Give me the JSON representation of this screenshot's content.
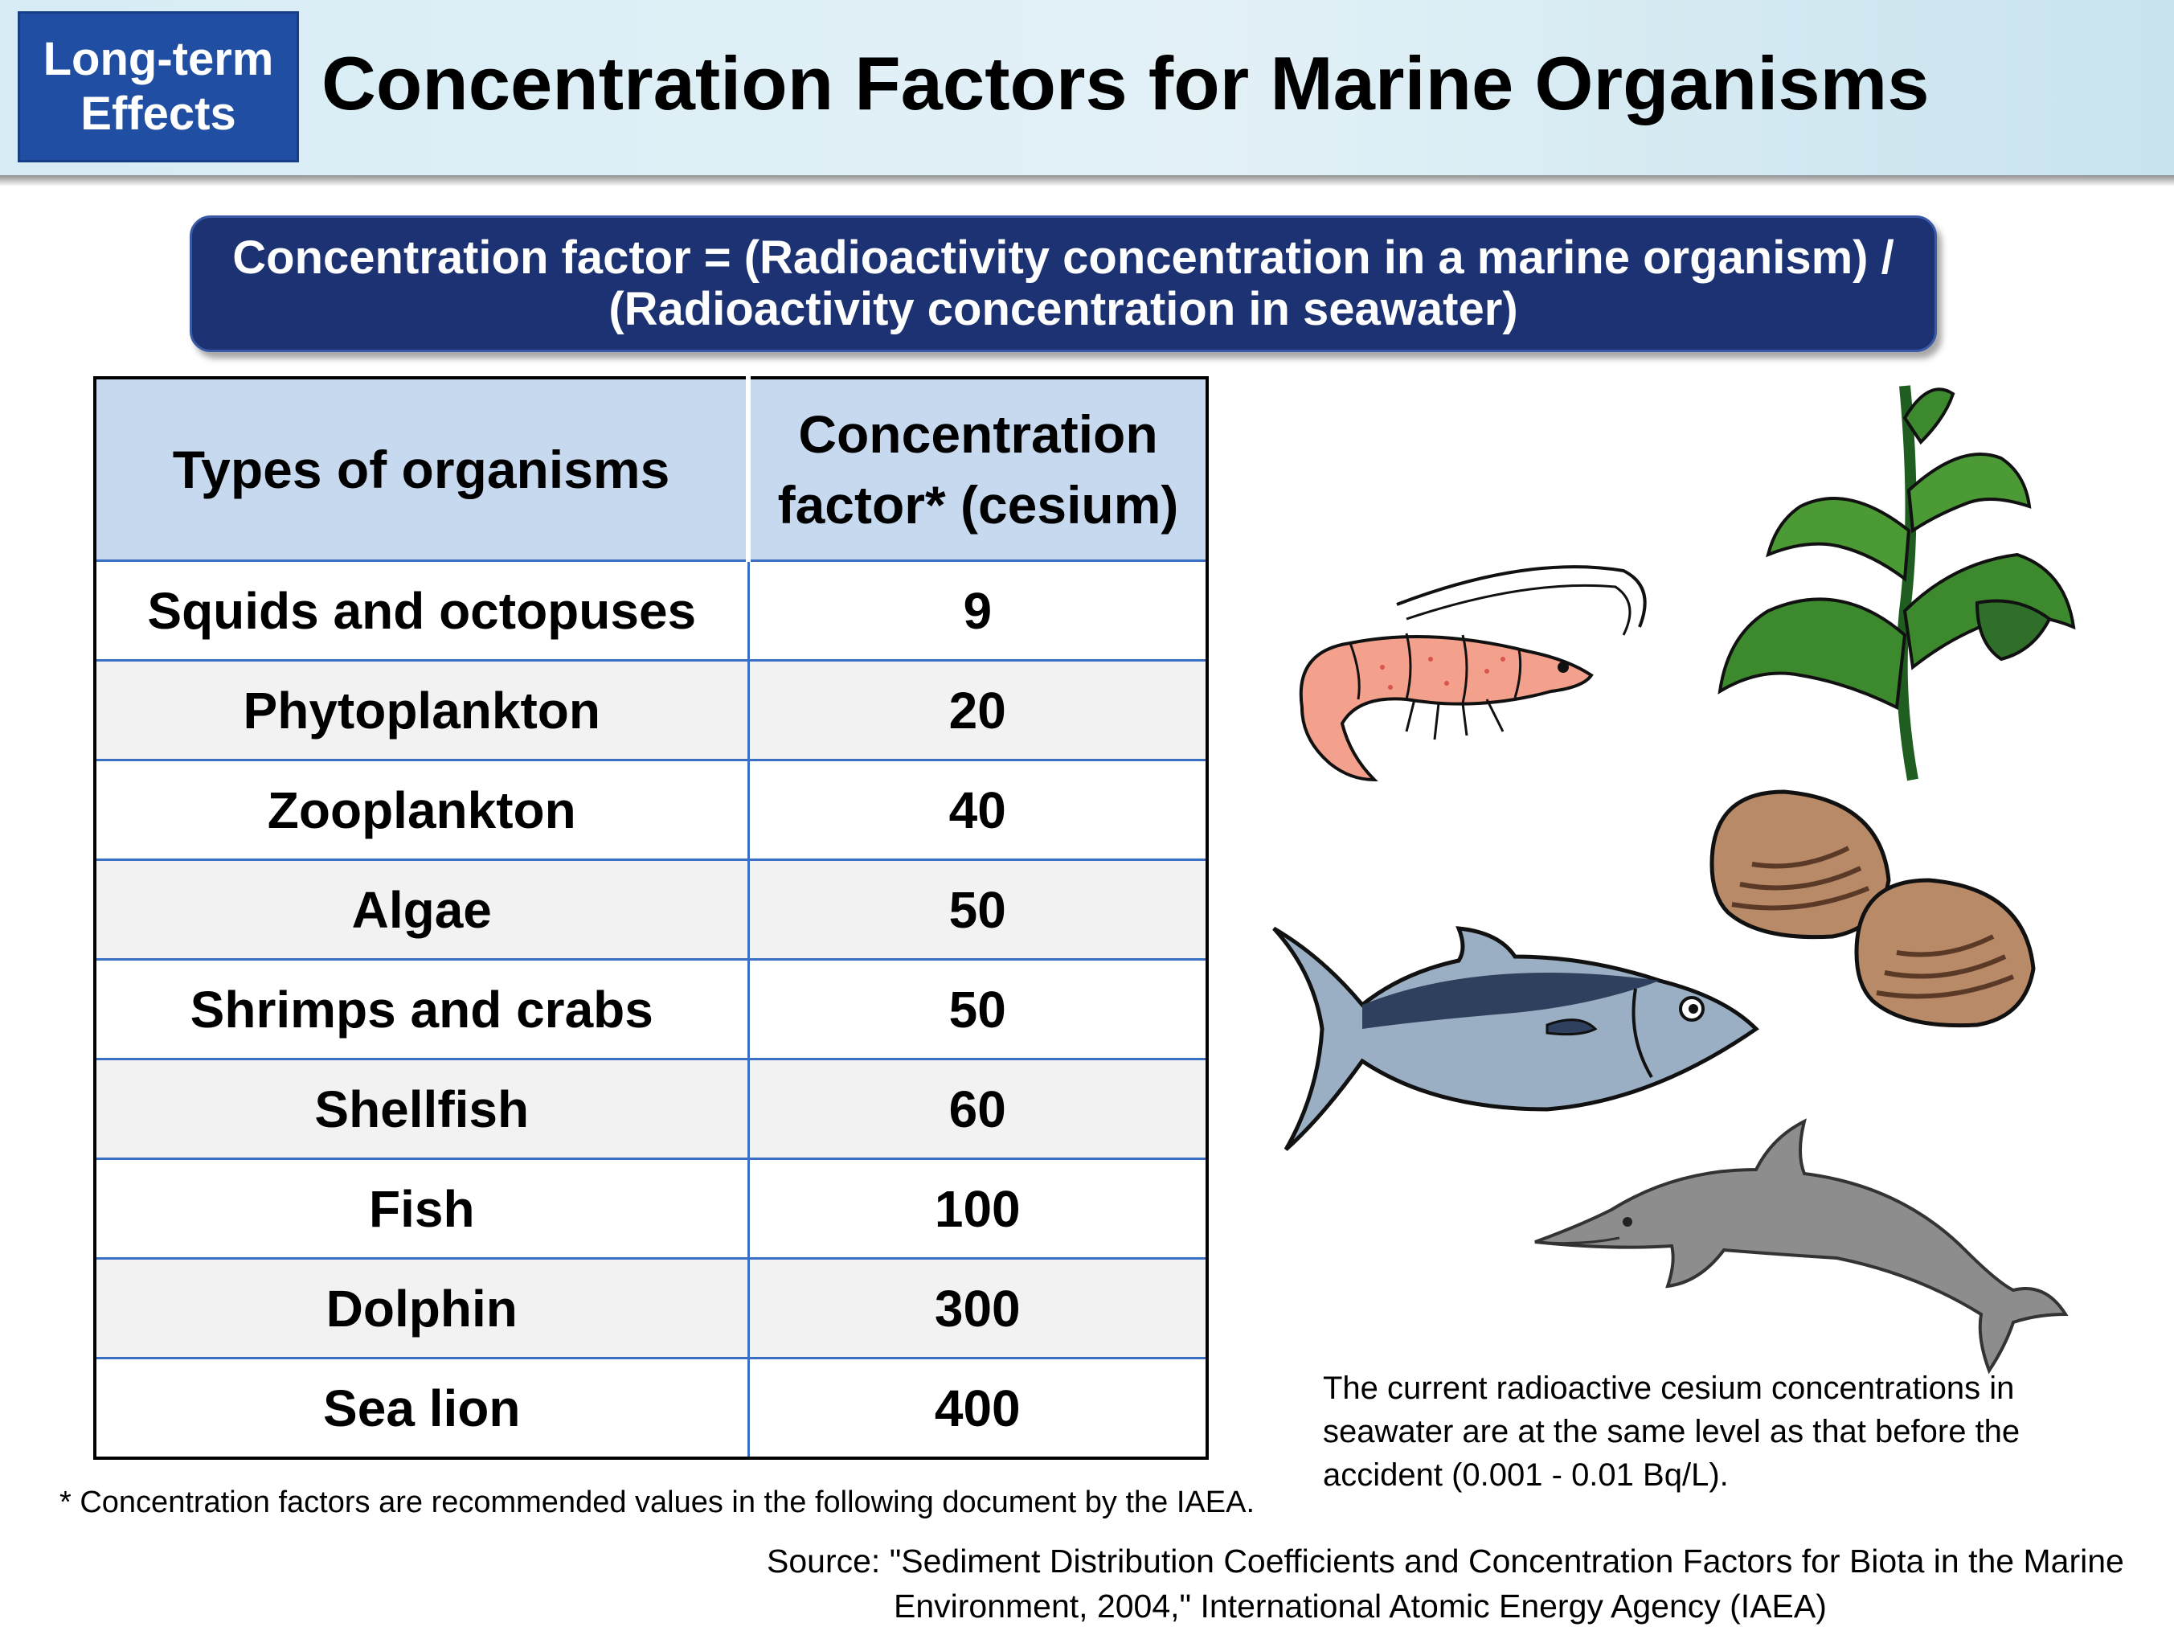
{
  "header": {
    "badge_line1": "Long-term",
    "badge_line2": "Effects",
    "title": "Concentration Factors for Marine Organisms"
  },
  "formula": {
    "line1": "Concentration factor = (Radioactivity concentration in a marine organism) /",
    "line2": "(Radioactivity concentration in seawater)"
  },
  "table": {
    "headers": [
      "Types of organisms",
      "Concentration factor* (cesium)"
    ],
    "header2_line1": "Concentration",
    "header2_line2": "factor* (cesium)",
    "rows": [
      {
        "organism": "Squids and octopuses",
        "factor": "9"
      },
      {
        "organism": "Phytoplankton",
        "factor": "20"
      },
      {
        "organism": "Zooplankton",
        "factor": "40"
      },
      {
        "organism": "Algae",
        "factor": "50"
      },
      {
        "organism": "Shrimps and crabs",
        "factor": "50"
      },
      {
        "organism": "Shellfish",
        "factor": "60"
      },
      {
        "organism": "Fish",
        "factor": "100"
      },
      {
        "organism": "Dolphin",
        "factor": "300"
      },
      {
        "organism": "Sea lion",
        "factor": "400"
      }
    ]
  },
  "footnote": "* Concentration factors are recommended values in the following document by the IAEA.",
  "note": "The current radioactive cesium concentrations in seawater are at the same level as that before the accident (0.001 - 0.01 Bq/L).",
  "source": {
    "line1": "Source: \"Sediment Distribution Coefficients and Concentration Factors for Biota in the Marine",
    "line2": "Environment, 2004,\" International Atomic Energy Agency (IAEA)"
  },
  "illustrations": [
    "shrimp-icon",
    "seaweed-icon",
    "clam-icon",
    "tuna-icon",
    "dolphin-icon"
  ],
  "colors": {
    "badge": "#1f4ea3",
    "formula_box": "#1c3272",
    "table_header": "#c7d9ee",
    "grid_line": "#3b6fc4"
  }
}
